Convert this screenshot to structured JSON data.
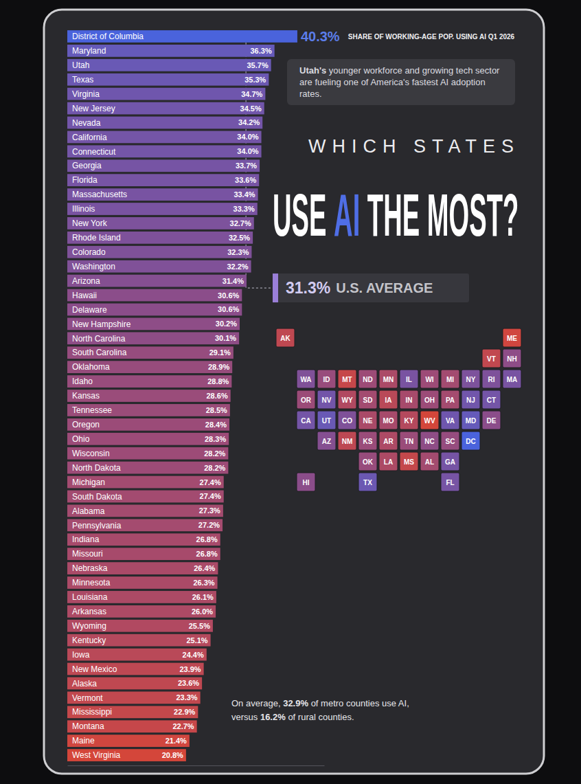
{
  "chart_data": {
    "type": "bar",
    "orientation": "horizontal",
    "title": [
      "WHICH STATES",
      "USE AI THE MOST?"
    ],
    "xlabel": "SHARE OF WORKING-AGE POP. USING AI Q1 2026",
    "categories": [
      "District of Columbia",
      "Maryland",
      "Utah",
      "Texas",
      "Virginia",
      "New Jersey",
      "Nevada",
      "California",
      "Connecticut",
      "Georgia",
      "Florida",
      "Massachusetts",
      "Illinois",
      "New York",
      "Rhode Island",
      "Colorado",
      "Washington",
      "Arizona",
      "Hawaii",
      "Delaware",
      "New Hampshire",
      "North Carolina",
      "South Carolina",
      "Oklahoma",
      "Idaho",
      "Kansas",
      "Tennessee",
      "Oregon",
      "Ohio",
      "Wisconsin",
      "North Dakota",
      "Michigan",
      "South Dakota",
      "Alabama",
      "Pennsylvania",
      "Indiana",
      "Missouri",
      "Nebraska",
      "Minnesota",
      "Louisiana",
      "Arkansas",
      "Wyoming",
      "Kentucky",
      "Iowa",
      "New Mexico",
      "Alaska",
      "Vermont",
      "Mississippi",
      "Montana",
      "Maine",
      "West Virginia"
    ],
    "state_codes": [
      "DC",
      "MD",
      "UT",
      "TX",
      "VA",
      "NJ",
      "NV",
      "CA",
      "CT",
      "GA",
      "FL",
      "MA",
      "IL",
      "NY",
      "RI",
      "CO",
      "WA",
      "AZ",
      "HI",
      "DE",
      "NH",
      "NC",
      "SC",
      "OK",
      "ID",
      "KS",
      "TN",
      "OR",
      "OH",
      "WI",
      "ND",
      "MI",
      "SD",
      "AL",
      "PA",
      "IN",
      "MO",
      "NE",
      "MN",
      "LA",
      "AR",
      "WY",
      "KY",
      "IA",
      "NM",
      "AK",
      "VT",
      "MS",
      "MT",
      "ME",
      "WV"
    ],
    "values": [
      40.3,
      36.3,
      35.7,
      35.3,
      34.7,
      34.5,
      34.2,
      34.0,
      34.0,
      33.7,
      33.6,
      33.4,
      33.3,
      32.7,
      32.5,
      32.3,
      32.2,
      31.4,
      30.6,
      30.6,
      30.2,
      30.1,
      29.1,
      28.9,
      28.8,
      28.6,
      28.5,
      28.4,
      28.3,
      28.2,
      28.2,
      27.4,
      27.4,
      27.3,
      27.2,
      26.8,
      26.8,
      26.4,
      26.3,
      26.1,
      26.0,
      25.5,
      25.1,
      24.4,
      23.9,
      23.6,
      23.3,
      22.9,
      22.7,
      21.4,
      20.8
    ],
    "value_labels": [
      "40.3%",
      "36.3%",
      "35.7%",
      "35.3%",
      "34.7%",
      "34.5%",
      "34.2%",
      "34.0%",
      "34.0%",
      "33.7%",
      "33.6%",
      "33.4%",
      "33.3%",
      "32.7%",
      "32.5%",
      "32.3%",
      "32.2%",
      "31.4%",
      "30.6%",
      "30.6%",
      "30.2%",
      "30.1%",
      "29.1%",
      "28.9%",
      "28.8%",
      "28.6%",
      "28.5%",
      "28.4%",
      "28.3%",
      "28.2%",
      "28.2%",
      "27.4%",
      "27.4%",
      "27.3%",
      "27.2%",
      "26.8%",
      "26.8%",
      "26.4%",
      "26.3%",
      "26.1%",
      "26.0%",
      "25.5%",
      "25.1%",
      "24.4%",
      "23.9%",
      "23.6%",
      "23.3%",
      "22.9%",
      "22.7%",
      "21.4%",
      "20.8%"
    ],
    "data_labels": true,
    "xlim": [
      0,
      45
    ],
    "xticks": [],
    "tick_labels": "y",
    "grid": false,
    "reference_line": {
      "value": 31.3,
      "value_label": "31.3%",
      "label": "U.S. AVERAGE"
    },
    "annotations": [
      "Utah's younger workforce and growing tech sector are fueling one of America's fastest AI adoption rates.",
      "On average, 32.9% of metro counties use AI, versus 16.2% of rural counties."
    ]
  }
}
